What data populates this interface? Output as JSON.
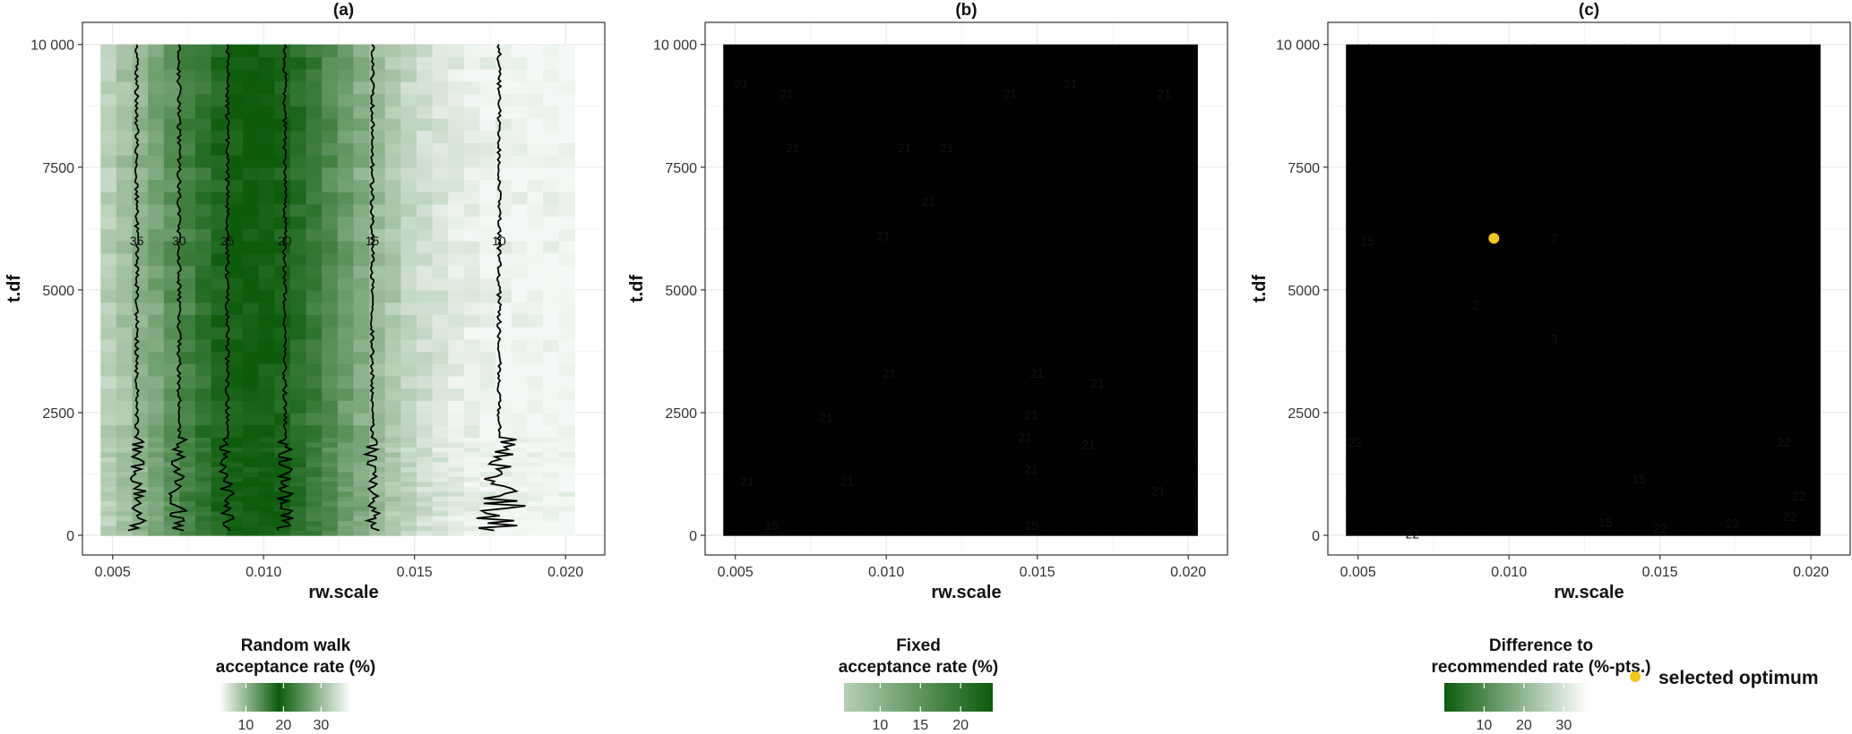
{
  "chart_data": [
    {
      "type": "heatmap",
      "panel_label": "(a)",
      "xlabel": "rw.scale",
      "ylabel": "t.df",
      "xlim": [
        0.004,
        0.0213
      ],
      "ylim": [
        -400,
        10450
      ],
      "xticks": [
        0.005,
        0.01,
        0.015,
        0.02
      ],
      "xtick_labels": [
        "0.005",
        "0.010",
        "0.015",
        "0.020"
      ],
      "yticks": [
        0,
        2500,
        5000,
        7500,
        10000
      ],
      "ytick_labels": [
        "0",
        "2500",
        "5000",
        "7500",
        "10 000"
      ],
      "grid": true,
      "contours": [
        {
          "level": "35",
          "label_x": 0.0058,
          "label_y": 6000
        },
        {
          "level": "30",
          "label_x": 0.0072,
          "label_y": 6000
        },
        {
          "level": "25",
          "label_x": 0.0088,
          "label_y": 6000
        },
        {
          "level": "20",
          "label_x": 0.0107,
          "label_y": 6000
        },
        {
          "level": "15",
          "label_x": 0.0136,
          "label_y": 6000
        },
        {
          "level": "10",
          "label_x": 0.0178,
          "label_y": 6000
        }
      ],
      "legend": {
        "title_lines": [
          "Random walk",
          "acceptance rate (%)"
        ],
        "ticks": [
          "10",
          "20",
          "30"
        ],
        "tick_values": [
          10,
          20,
          30
        ],
        "range": [
          3,
          38
        ],
        "gradient": "diverging",
        "placement": "bottom"
      }
    },
    {
      "type": "heatmap",
      "panel_label": "(b)",
      "xlabel": "rw.scale",
      "ylabel": "t.df",
      "xlim": [
        0.004,
        0.0213
      ],
      "ylim": [
        -400,
        10450
      ],
      "xticks": [
        0.005,
        0.01,
        0.015,
        0.02
      ],
      "xtick_labels": [
        "0.005",
        "0.010",
        "0.015",
        "0.020"
      ],
      "yticks": [
        0,
        2500,
        5000,
        7500,
        10000
      ],
      "ytick_labels": [
        "0",
        "2500",
        "5000",
        "7500",
        "10 000"
      ],
      "grid": true,
      "contours": [
        {
          "level": "21",
          "label_x": 0.0052,
          "label_y": 9200
        },
        {
          "level": "21",
          "label_x": 0.0067,
          "label_y": 9000
        },
        {
          "level": "21",
          "label_x": 0.0069,
          "label_y": 7900
        },
        {
          "level": "21",
          "label_x": 0.0106,
          "label_y": 7900
        },
        {
          "level": "21",
          "label_x": 0.012,
          "label_y": 7900
        },
        {
          "level": "21",
          "label_x": 0.0141,
          "label_y": 9000
        },
        {
          "level": "21",
          "label_x": 0.0161,
          "label_y": 9200
        },
        {
          "level": "21",
          "label_x": 0.0192,
          "label_y": 9000
        },
        {
          "level": "21",
          "label_x": 0.0114,
          "label_y": 6800
        },
        {
          "level": "21",
          "label_x": 0.0099,
          "label_y": 6100
        },
        {
          "level": "21",
          "label_x": 0.0101,
          "label_y": 3300
        },
        {
          "level": "21",
          "label_x": 0.015,
          "label_y": 3300
        },
        {
          "level": "21",
          "label_x": 0.017,
          "label_y": 3100
        },
        {
          "level": "21",
          "label_x": 0.0148,
          "label_y": 2450
        },
        {
          "level": "21",
          "label_x": 0.008,
          "label_y": 2400
        },
        {
          "level": "21",
          "label_x": 0.0146,
          "label_y": 2000
        },
        {
          "level": "21",
          "label_x": 0.0167,
          "label_y": 1850
        },
        {
          "level": "21",
          "label_x": 0.0054,
          "label_y": 1100
        },
        {
          "level": "21",
          "label_x": 0.0087,
          "label_y": 1100
        },
        {
          "level": "21",
          "label_x": 0.0148,
          "label_y": 1350
        },
        {
          "level": "21",
          "label_x": 0.019,
          "label_y": 900
        },
        {
          "level": "15",
          "label_x": 0.0062,
          "label_y": 200
        },
        {
          "level": "15",
          "label_x": 0.0148,
          "label_y": 200
        }
      ],
      "legend": {
        "title_lines": [
          "Fixed",
          "acceptance rate (%)"
        ],
        "ticks": [
          "10",
          "15",
          "20"
        ],
        "tick_values": [
          10,
          15,
          20
        ],
        "range": [
          5.5,
          24
        ],
        "gradient": "sequential",
        "placement": "bottom"
      }
    },
    {
      "type": "heatmap",
      "panel_label": "(c)",
      "xlabel": "rw.scale",
      "ylabel": "t.df",
      "xlim": [
        0.004,
        0.0213
      ],
      "ylim": [
        -400,
        10450
      ],
      "xticks": [
        0.005,
        0.01,
        0.015,
        0.02
      ],
      "xtick_labels": [
        "0.005",
        "0.010",
        "0.015",
        "0.020"
      ],
      "yticks": [
        0,
        2500,
        5000,
        7500,
        10000
      ],
      "ytick_labels": [
        "0",
        "2500",
        "5000",
        "7500",
        "10 000"
      ],
      "grid": true,
      "contours": [
        {
          "level": "15",
          "label_x": 0.0053,
          "label_y": 6000
        },
        {
          "level": "7",
          "label_x": 0.0115,
          "label_y": 6050
        },
        {
          "level": "2",
          "label_x": 0.0089,
          "label_y": 4700
        },
        {
          "level": "3",
          "label_x": 0.0115,
          "label_y": 4000
        },
        {
          "level": "22",
          "label_x": 0.0049,
          "label_y": 1900
        },
        {
          "level": "22",
          "label_x": 0.0191,
          "label_y": 1900
        },
        {
          "level": "15",
          "label_x": 0.0143,
          "label_y": 1150
        },
        {
          "level": "22",
          "label_x": 0.0196,
          "label_y": 800
        },
        {
          "level": "22",
          "label_x": 0.0193,
          "label_y": 380
        },
        {
          "level": "15",
          "label_x": 0.0132,
          "label_y": 270
        },
        {
          "level": "22",
          "label_x": 0.015,
          "label_y": 150
        },
        {
          "level": "22",
          "label_x": 0.0174,
          "label_y": 250
        },
        {
          "level": "22",
          "label_x": 0.0068,
          "label_y": 30
        }
      ],
      "optimum": {
        "x": 0.0095,
        "y": 6050
      },
      "legend": {
        "title_lines": [
          "Difference to",
          "recommended rate (%-pts.)"
        ],
        "ticks": [
          "10",
          "20",
          "30"
        ],
        "tick_values": [
          10,
          20,
          30
        ],
        "range": [
          0,
          36
        ],
        "gradient": "sequential-reverse",
        "placement": "bottom"
      }
    }
  ],
  "key": {
    "label": "selected optimum",
    "color": "#f5c518"
  },
  "colors": {
    "dark": "#0c5c0c",
    "light": "#f4f8f4",
    "mid": "#5f9a5c",
    "panel_bg": "#ffffff",
    "grid": "#ebebeb"
  }
}
